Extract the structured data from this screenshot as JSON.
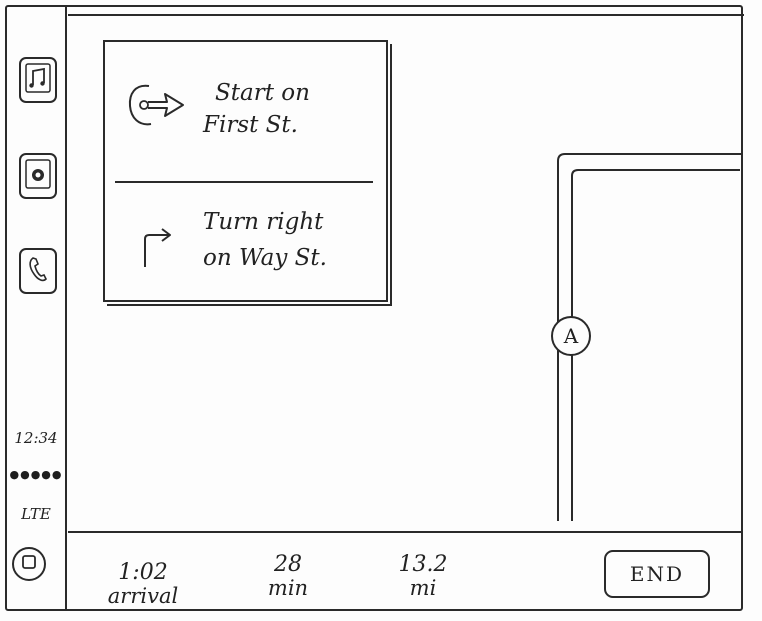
{
  "sidebar": {
    "icons": {
      "music": "music-icon",
      "podcast": "podcast-icon",
      "phone": "phone-icon",
      "home": "home-icon"
    },
    "time": "12:34",
    "signal": "●●●●●",
    "network": "LTE"
  },
  "directions": {
    "steps": [
      {
        "icon": "start-arrow-icon",
        "line1": "Start on",
        "line2": "First St."
      },
      {
        "icon": "turn-right-icon",
        "line1": "Turn right",
        "line2": "on Way St."
      }
    ]
  },
  "map": {
    "marker_label": "A"
  },
  "trip": {
    "arrival_value": "1:02",
    "arrival_label": "arrival",
    "duration_value": "28",
    "duration_label": "min",
    "distance_value": "13.2",
    "distance_label": "mi",
    "end_label": "END"
  }
}
